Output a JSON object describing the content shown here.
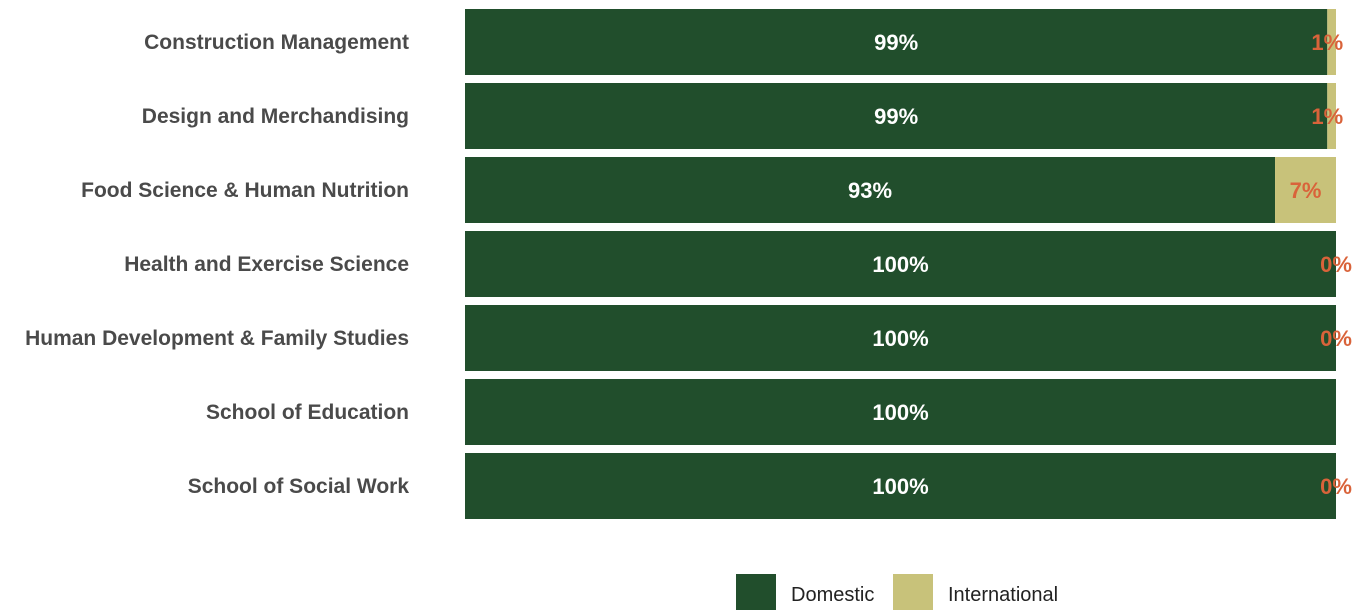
{
  "chart_data": {
    "type": "bar",
    "orientation": "horizontal",
    "stacked": true,
    "percent_stacked": true,
    "categories": [
      "Construction Management",
      "Design and Merchandising",
      "Food Science & Human Nutrition",
      "Health and Exercise Science",
      "Human Development & Family Studies",
      "School of Education",
      "School of Social Work"
    ],
    "series": [
      {
        "name": "Domestic",
        "color": "#214e2c",
        "values": [
          99,
          99,
          93,
          100,
          100,
          100,
          100
        ],
        "labels": [
          "99%",
          "99%",
          "93%",
          "100%",
          "100%",
          "100%",
          "100%"
        ]
      },
      {
        "name": "International",
        "color": "#c8c27a",
        "values": [
          1,
          1,
          7,
          0,
          0,
          0,
          0
        ],
        "labels": [
          "1%",
          "1%",
          "7%",
          "0%",
          "0%",
          "",
          "0%"
        ]
      }
    ],
    "label_colors": {
      "Domestic": "#ffffff",
      "International": "#d9633a"
    },
    "xlim": [
      0,
      100
    ],
    "grid": false,
    "legend": "bottom"
  }
}
